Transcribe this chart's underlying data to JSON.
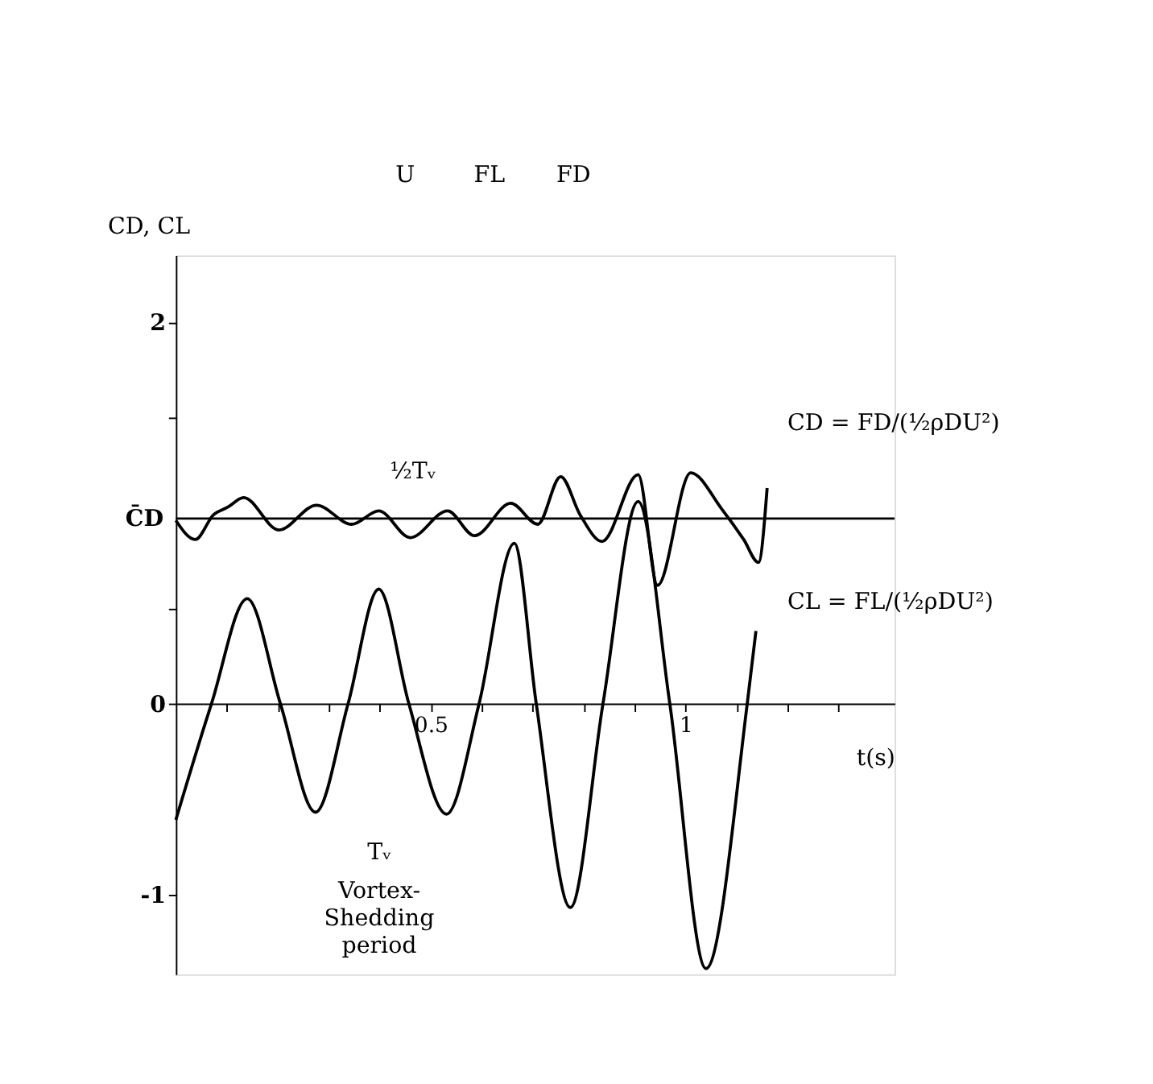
{
  "chart_data": {
    "type": "line",
    "xlabel": "t(s)",
    "ylabel": "CD, CL",
    "xlim": [
      0,
      1.41
    ],
    "ylim": [
      -1.42,
      2.35
    ],
    "xticks": [
      {
        "value": 0.1,
        "label": null
      },
      {
        "value": 0.2,
        "label": null
      },
      {
        "value": 0.3,
        "label": null
      },
      {
        "value": 0.4,
        "label": null
      },
      {
        "value": 0.5,
        "label": "0.5"
      },
      {
        "value": 0.6,
        "label": null
      },
      {
        "value": 0.7,
        "label": null
      },
      {
        "value": 0.8,
        "label": null
      },
      {
        "value": 0.9,
        "label": null
      },
      1,
      {
        "value": 1.1,
        "label": null
      },
      {
        "value": 1.2,
        "label": null
      },
      {
        "value": 1.3,
        "label": null
      }
    ],
    "yticks": [
      -1,
      0,
      {
        "value": 0.5,
        "label": null
      },
      {
        "value": 1.5,
        "label": null
      },
      2
    ],
    "marker": "none",
    "line_style": "solid",
    "series": [
      {
        "color": "#000000",
        "x": [
          0.0,
          0.038,
          0.074,
          0.102,
          0.133,
          0.202,
          0.276,
          0.345,
          0.398,
          0.46,
          0.533,
          0.586,
          0.657,
          0.71,
          0.755,
          0.793,
          0.836,
          0.907,
          0.945,
          1.01,
          1.071,
          1.114,
          1.143,
          1.16
        ],
        "values": [
          0.96,
          0.86,
          0.99,
          1.03,
          1.08,
          0.91,
          1.04,
          0.94,
          1.01,
          0.87,
          1.01,
          0.88,
          1.05,
          0.94,
          1.19,
          0.99,
          0.85,
          1.2,
          0.62,
          1.21,
          1.02,
          0.86,
          0.74,
          1.13
        ]
      },
      {
        "color": "#000000",
        "x": [
          0.0,
          0.07,
          0.14,
          0.205,
          0.274,
          0.338,
          0.398,
          0.457,
          0.531,
          0.595,
          0.664,
          0.707,
          0.774,
          0.838,
          0.907,
          0.969,
          1.04,
          1.121,
          1.138
        ],
        "values": [
          -0.61,
          0,
          0.55,
          0,
          -0.57,
          0,
          0.6,
          0,
          -0.58,
          0,
          0.84,
          0,
          -1.07,
          0,
          1.06,
          0,
          -1.39,
          0,
          0.38
        ]
      }
    ],
    "ref_lines": [
      {
        "axis": "y",
        "value": 0.97,
        "label": "C̄D"
      }
    ],
    "annotations": [
      "½Tᵥ",
      "Tᵥ",
      "Vortex-\nShedding\nperiod",
      "CD = FD/(½ρDU²)",
      "CL = FL/(½ρDU²)",
      "U",
      "FL",
      "FD"
    ]
  }
}
